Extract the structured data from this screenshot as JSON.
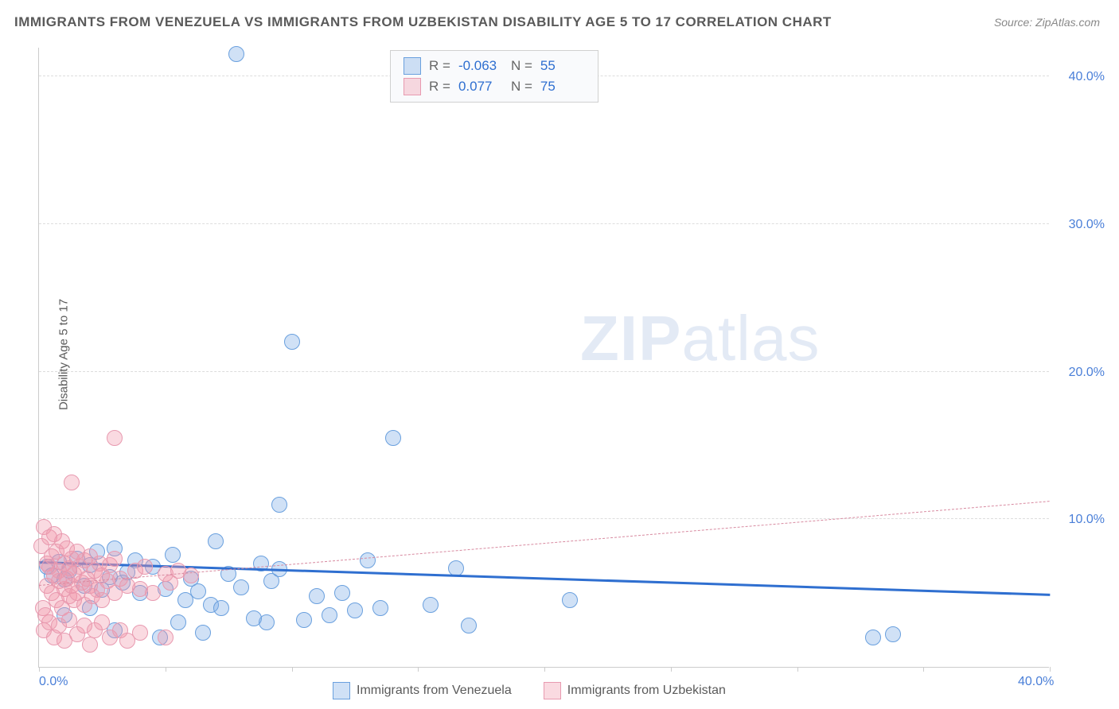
{
  "title": "IMMIGRANTS FROM VENEZUELA VS IMMIGRANTS FROM UZBEKISTAN DISABILITY AGE 5 TO 17 CORRELATION CHART",
  "source": "Source: ZipAtlas.com",
  "ylabel": "Disability Age 5 to 17",
  "watermark_bold": "ZIP",
  "watermark_rest": "atlas",
  "chart": {
    "type": "scatter",
    "xlim": [
      0,
      40
    ],
    "ylim": [
      0,
      42
    ],
    "xtick_positions": [
      0,
      5,
      10,
      15,
      20,
      25,
      30,
      35,
      40
    ],
    "xtick_labels": {
      "0": "0.0%",
      "40": "40.0%"
    },
    "ytick_positions": [
      10,
      20,
      30,
      40
    ],
    "ytick_labels": [
      "10.0%",
      "20.0%",
      "30.0%",
      "40.0%"
    ],
    "grid_color": "#dddddd",
    "axis_color": "#cccccc",
    "background_color": "#ffffff",
    "tick_label_color": "#4a7fd8",
    "marker_radius": 10,
    "series": [
      {
        "id": "venezuela",
        "label": "Immigrants from Venezuela",
        "fill": "rgba(120,170,230,0.35)",
        "stroke": "#6aa0de",
        "trend_color": "#2f6fd0",
        "trend_width": 3,
        "trend_dash": "solid",
        "trend_y_at_x0": 7.0,
        "trend_y_at_xmax": 4.8,
        "R": "-0.063",
        "N": "55",
        "points": [
          [
            0.3,
            6.8
          ],
          [
            0.5,
            6.2
          ],
          [
            0.8,
            7.1
          ],
          [
            1.0,
            5.9
          ],
          [
            1.2,
            6.5
          ],
          [
            1.5,
            7.3
          ],
          [
            1.8,
            5.5
          ],
          [
            2.0,
            6.9
          ],
          [
            2.3,
            7.8
          ],
          [
            2.5,
            5.2
          ],
          [
            2.8,
            6.1
          ],
          [
            3.0,
            8.0
          ],
          [
            3.3,
            5.7
          ],
          [
            3.5,
            6.4
          ],
          [
            3.8,
            7.2
          ],
          [
            4.0,
            5.0
          ],
          [
            4.5,
            6.8
          ],
          [
            5.0,
            5.3
          ],
          [
            5.3,
            7.6
          ],
          [
            5.8,
            4.5
          ],
          [
            6.0,
            6.0
          ],
          [
            6.3,
            5.1
          ],
          [
            6.8,
            4.2
          ],
          [
            7.0,
            8.5
          ],
          [
            7.2,
            4.0
          ],
          [
            7.5,
            6.3
          ],
          [
            8.0,
            5.4
          ],
          [
            8.8,
            7.0
          ],
          [
            9.2,
            5.8
          ],
          [
            9.5,
            6.6
          ],
          [
            9.5,
            11.0
          ],
          [
            9.0,
            3.0
          ],
          [
            10.0,
            22.0
          ],
          [
            10.5,
            3.2
          ],
          [
            11.0,
            4.8
          ],
          [
            11.5,
            3.5
          ],
          [
            12.0,
            5.0
          ],
          [
            12.5,
            3.8
          ],
          [
            13.0,
            7.2
          ],
          [
            13.5,
            4.0
          ],
          [
            14.0,
            15.5
          ],
          [
            15.5,
            4.2
          ],
          [
            16.5,
            6.7
          ],
          [
            17.0,
            2.8
          ],
          [
            7.8,
            41.5
          ],
          [
            21.0,
            4.5
          ],
          [
            33.0,
            2.0
          ],
          [
            33.8,
            2.2
          ],
          [
            4.8,
            2.0
          ],
          [
            6.5,
            2.3
          ],
          [
            5.5,
            3.0
          ],
          [
            3.0,
            2.5
          ],
          [
            8.5,
            3.3
          ],
          [
            1.0,
            3.5
          ],
          [
            2.0,
            4.0
          ]
        ]
      },
      {
        "id": "uzbekistan",
        "label": "Immigrants from Uzbekistan",
        "fill": "rgba(240,150,170,0.35)",
        "stroke": "#e89ab0",
        "trend_color": "#d88aa0",
        "trend_width": 1.5,
        "trend_dash": "dashed",
        "trend_y_at_x0": 5.5,
        "trend_y_at_xmax": 11.2,
        "R": "0.077",
        "N": "75",
        "points": [
          [
            0.1,
            8.2
          ],
          [
            0.2,
            9.5
          ],
          [
            0.3,
            7.0
          ],
          [
            0.3,
            5.5
          ],
          [
            0.4,
            6.8
          ],
          [
            0.4,
            8.8
          ],
          [
            0.5,
            5.0
          ],
          [
            0.5,
            7.5
          ],
          [
            0.6,
            6.2
          ],
          [
            0.6,
            9.0
          ],
          [
            0.7,
            4.5
          ],
          [
            0.7,
            7.8
          ],
          [
            0.8,
            5.8
          ],
          [
            0.8,
            6.5
          ],
          [
            0.9,
            8.5
          ],
          [
            0.9,
            4.0
          ],
          [
            1.0,
            7.0
          ],
          [
            1.0,
            5.3
          ],
          [
            1.1,
            6.0
          ],
          [
            1.1,
            8.0
          ],
          [
            1.2,
            4.8
          ],
          [
            1.2,
            6.7
          ],
          [
            1.3,
            5.5
          ],
          [
            1.3,
            7.3
          ],
          [
            1.4,
            6.3
          ],
          [
            1.4,
            4.5
          ],
          [
            1.5,
            7.8
          ],
          [
            1.5,
            5.0
          ],
          [
            1.6,
            6.8
          ],
          [
            1.7,
            5.7
          ],
          [
            1.8,
            7.2
          ],
          [
            1.8,
            4.2
          ],
          [
            1.9,
            6.0
          ],
          [
            2.0,
            5.5
          ],
          [
            2.0,
            7.5
          ],
          [
            2.1,
            4.8
          ],
          [
            2.2,
            6.5
          ],
          [
            2.3,
            5.2
          ],
          [
            2.4,
            7.0
          ],
          [
            2.5,
            4.5
          ],
          [
            2.5,
            6.2
          ],
          [
            2.7,
            5.8
          ],
          [
            2.8,
            6.9
          ],
          [
            3.0,
            5.0
          ],
          [
            3.0,
            7.3
          ],
          [
            3.2,
            6.0
          ],
          [
            3.5,
            5.5
          ],
          [
            3.8,
            6.5
          ],
          [
            4.0,
            5.3
          ],
          [
            4.2,
            6.8
          ],
          [
            4.5,
            5.0
          ],
          [
            5.0,
            6.3
          ],
          [
            5.2,
            5.7
          ],
          [
            3.0,
            15.5
          ],
          [
            1.3,
            12.5
          ],
          [
            0.2,
            2.5
          ],
          [
            0.4,
            3.0
          ],
          [
            0.6,
            2.0
          ],
          [
            0.8,
            2.8
          ],
          [
            1.0,
            1.8
          ],
          [
            1.2,
            3.2
          ],
          [
            1.5,
            2.2
          ],
          [
            1.8,
            2.8
          ],
          [
            2.0,
            1.5
          ],
          [
            2.2,
            2.5
          ],
          [
            2.5,
            3.0
          ],
          [
            2.8,
            2.0
          ],
          [
            3.2,
            2.5
          ],
          [
            3.5,
            1.8
          ],
          [
            4.0,
            2.3
          ],
          [
            5.0,
            2.0
          ],
          [
            5.5,
            6.5
          ],
          [
            6.0,
            6.2
          ],
          [
            0.15,
            4.0
          ],
          [
            0.25,
            3.5
          ]
        ]
      }
    ]
  },
  "legend_stats": {
    "rows": [
      {
        "swatch_fill": "rgba(120,170,230,0.35)",
        "swatch_stroke": "#6aa0de",
        "R": "-0.063",
        "N": "55"
      },
      {
        "swatch_fill": "rgba(240,150,170,0.35)",
        "swatch_stroke": "#e89ab0",
        "R": "0.077",
        "N": "75"
      }
    ]
  },
  "legend_bottom": [
    {
      "swatch_fill": "rgba(120,170,230,0.35)",
      "swatch_stroke": "#6aa0de",
      "label": "Immigrants from Venezuela"
    },
    {
      "swatch_fill": "rgba(240,150,170,0.35)",
      "swatch_stroke": "#e89ab0",
      "label": "Immigrants from Uzbekistan"
    }
  ]
}
